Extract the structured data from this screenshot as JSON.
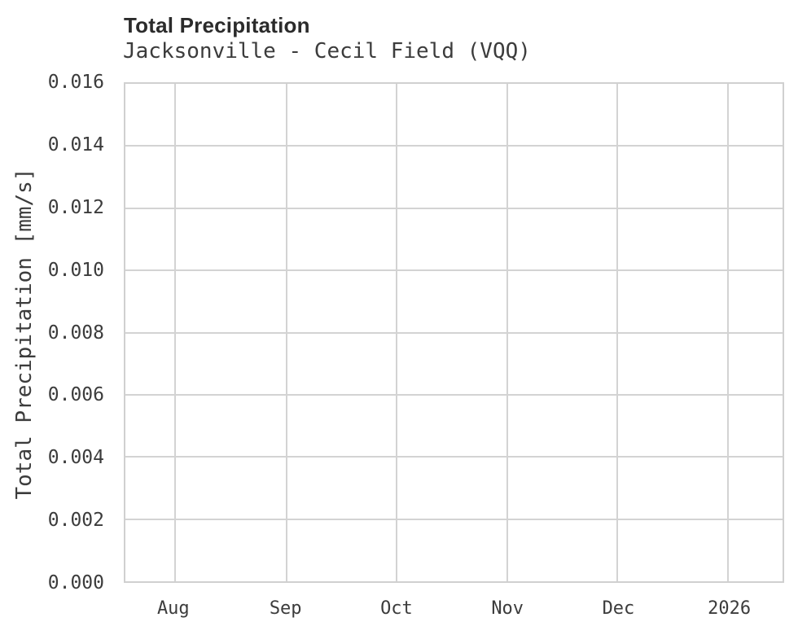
{
  "header": {
    "title": "Total Precipitation",
    "subtitle": "Jacksonville - Cecil Field (VQQ)"
  },
  "chart_data": {
    "type": "line",
    "title": "Total Precipitation",
    "subtitle": "Jacksonville - Cecil Field (VQQ)",
    "xlabel": "",
    "ylabel": "Total Precipitation [mm/s]",
    "x_tick_labels": [
      "Aug",
      "Sep",
      "Oct",
      "Nov",
      "Dec",
      "2026"
    ],
    "x_tick_positions_pct": [
      7.5,
      24.5,
      41.3,
      58.1,
      74.9,
      91.7
    ],
    "y_ticks": [
      0.0,
      0.002,
      0.004,
      0.006,
      0.008,
      0.01,
      0.012,
      0.014,
      0.016
    ],
    "y_tick_labels": [
      "0.000",
      "0.002",
      "0.004",
      "0.006",
      "0.008",
      "0.010",
      "0.012",
      "0.014",
      "0.016"
    ],
    "ylim": [
      0.0,
      0.016
    ],
    "grid": true,
    "legend": "none",
    "series": []
  },
  "colors": {
    "title": "#2b2b2b",
    "text": "#3c3c3c",
    "gridline": "#d3d3d3",
    "plot_border": "#d0d0d0",
    "background": "#ffffff"
  }
}
